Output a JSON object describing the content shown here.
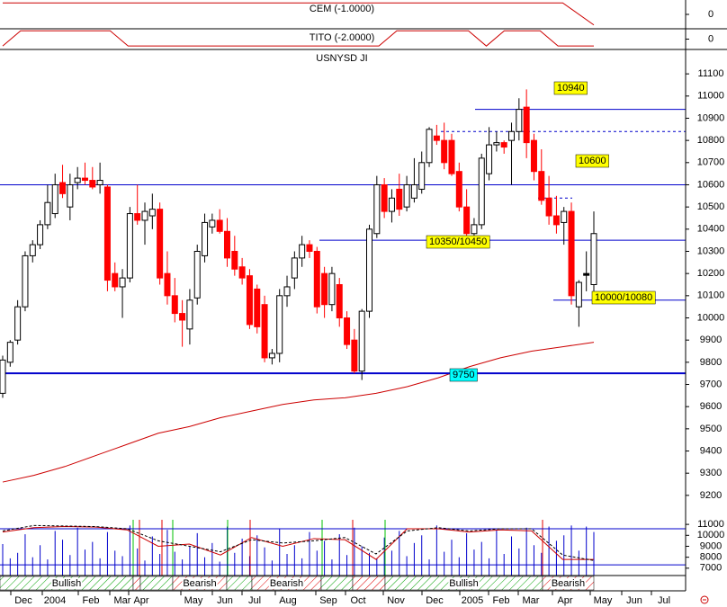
{
  "chart_data": [
    {
      "type": "line",
      "title": "CEM (-1.0000)",
      "color": "#cc0000",
      "ylim": [
        -1.5,
        1.5
      ],
      "yticks": [
        0
      ],
      "values": [
        1.2,
        1.2,
        1.2,
        1.2,
        1.2,
        1.2,
        1.2,
        1.2,
        1.2,
        1.2,
        1.2,
        1.2,
        1.2,
        1.2,
        1.2,
        1.2,
        1.2,
        1.2,
        1.2,
        -1.1
      ]
    },
    {
      "type": "line",
      "title": "TITO (-2.0000)",
      "color": "#cc0000",
      "ylim": [
        -1.5,
        1.5
      ],
      "yticks": [
        0
      ],
      "values": [
        -1,
        1.2,
        1.2,
        1.2,
        1.2,
        1.2,
        1.2,
        -1,
        -1,
        -1,
        -1,
        -1,
        -1,
        -1,
        -1,
        -1,
        -1,
        -1,
        -1,
        -1,
        -1,
        -1,
        1.2,
        1.2,
        1.2,
        1.2,
        1.2,
        -1,
        1.2,
        1.2,
        1.2,
        -1,
        -1,
        -1
      ]
    },
    {
      "type": "candlestick",
      "title": "USNYSD JI",
      "up_color": "#ffffff",
      "down_color": "#ff0000",
      "doji_color": "#000000",
      "ylim": [
        9090,
        11210
      ],
      "yticks": [
        9200,
        9300,
        9400,
        9500,
        9600,
        9700,
        9800,
        9900,
        10000,
        10100,
        10200,
        10300,
        10400,
        10500,
        10600,
        10700,
        10800,
        10900,
        11000,
        11100
      ],
      "open": [
        9660,
        9800,
        9900,
        10050,
        10280,
        10330,
        10420,
        10470,
        10610,
        10500,
        10610,
        10630,
        10620,
        10600,
        10590,
        10200,
        10140,
        10180,
        10470,
        10440,
        10460,
        10490,
        10200,
        10100,
        10020,
        9950,
        10090,
        10280,
        10410,
        10440,
        10390,
        10300,
        10230,
        10190,
        10130,
        10060,
        9820,
        9840,
        10100,
        10180,
        10270,
        10330,
        10300,
        10200,
        10060,
        10150,
        10000,
        9900,
        9760,
        10030,
        10380,
        10600,
        10480,
        10580,
        10500,
        10540,
        10580,
        10700,
        10820,
        10800,
        10800,
        10660,
        10500,
        10380,
        10420,
        10650,
        10780,
        10790,
        10800,
        10840,
        10950,
        10800,
        10660,
        10540,
        10460,
        10430,
        10480,
        10050,
        10200,
        10150
      ],
      "high": [
        9830,
        9900,
        10080,
        10300,
        10350,
        10440,
        10600,
        10650,
        10690,
        10650,
        10680,
        10700,
        10680,
        10700,
        10600,
        10250,
        10220,
        10500,
        10600,
        10520,
        10560,
        10520,
        10300,
        10180,
        10080,
        10130,
        10330,
        10470,
        10470,
        10490,
        10450,
        10370,
        10270,
        10220,
        10150,
        10100,
        9860,
        10130,
        10190,
        10300,
        10370,
        10350,
        10320,
        10230,
        10230,
        10180,
        10030,
        9950,
        10040,
        10420,
        10640,
        10630,
        10580,
        10650,
        10640,
        10720,
        10750,
        10860,
        10870,
        10880,
        10830,
        10700,
        10580,
        10450,
        10740,
        10860,
        10840,
        10800,
        10880,
        10990,
        11030,
        10830,
        10760,
        10640,
        10550,
        10500,
        10520,
        10170,
        10300,
        10480
      ],
      "low": [
        9640,
        9780,
        9880,
        10030,
        10250,
        10310,
        10400,
        10450,
        10540,
        10440,
        10580,
        10600,
        10580,
        10560,
        10120,
        10120,
        10000,
        10160,
        10420,
        10330,
        10400,
        10150,
        10060,
        9980,
        9870,
        9880,
        10060,
        10250,
        10380,
        10380,
        10230,
        10190,
        10150,
        9950,
        9930,
        9800,
        9790,
        9800,
        10050,
        10130,
        10230,
        10270,
        10020,
        10000,
        10030,
        9960,
        9860,
        9750,
        9720,
        10000,
        10360,
        10450,
        10430,
        10460,
        10480,
        10520,
        10560,
        10680,
        10780,
        10670,
        10640,
        10480,
        10350,
        10330,
        10400,
        10620,
        10750,
        10740,
        10600,
        10800,
        10720,
        10620,
        10510,
        10420,
        10380,
        10330,
        10060,
        9960,
        10120,
        10120
      ],
      "close": [
        9810,
        9890,
        10050,
        10280,
        10330,
        10420,
        10520,
        10600,
        10560,
        10600,
        10630,
        10620,
        10590,
        10620,
        10170,
        10140,
        10180,
        10470,
        10440,
        10480,
        10490,
        10180,
        10100,
        10020,
        9990,
        10080,
        10300,
        10430,
        10440,
        10390,
        10270,
        10220,
        10180,
        9970,
        9960,
        9820,
        9840,
        10100,
        10140,
        10270,
        10330,
        10300,
        10050,
        10060,
        10200,
        10000,
        9880,
        9760,
        10030,
        10400,
        10600,
        10480,
        10540,
        10490,
        10600,
        10600,
        10700,
        10850,
        10800,
        10700,
        10650,
        10500,
        10380,
        10420,
        10720,
        10780,
        10790,
        10770,
        10840,
        10940,
        10790,
        10660,
        10530,
        10460,
        10420,
        10480,
        10100,
        10160,
        10200,
        10380
      ],
      "ma": {
        "color": "#cc0000",
        "values": [
          9260,
          9290,
          9330,
          9380,
          9430,
          9480,
          9510,
          9550,
          9580,
          9610,
          9630,
          9640,
          9660,
          9690,
          9730,
          9780,
          9820,
          9850,
          9870,
          9890
        ]
      },
      "level_color": "#0000cc",
      "levels": [
        {
          "value": 10940,
          "label": "10940",
          "style": "solid",
          "box_color": "#ffff00"
        },
        {
          "value": 10840,
          "label": null,
          "style": "dashed"
        },
        {
          "value": 10600,
          "label": "10600",
          "style": "solid",
          "box_color": "#ffff00"
        },
        {
          "value": 10540,
          "label": null,
          "style": "dashed"
        },
        {
          "value": 10350,
          "label": "10350/10450",
          "style": "solid",
          "box_color": "#ffff00"
        },
        {
          "value": 10080,
          "label": "10000/10080",
          "style": "solid",
          "box_color": "#ffff00"
        },
        {
          "value": 9750,
          "label": "9750",
          "style": "thick",
          "box_color": "#00ffff"
        }
      ]
    },
    {
      "type": "oscillator",
      "ylim": [
        6330,
        11420
      ],
      "yticks": [
        7000,
        8000,
        9000,
        10000,
        11000
      ],
      "series": [
        {
          "color": "#cc0000",
          "dashed": false,
          "values": [
            10300,
            10700,
            10800,
            10750,
            10500,
            9000,
            9200,
            8200,
            9800,
            9000,
            9700,
            9600,
            7800,
            10600,
            10600,
            10300,
            10500,
            10400,
            7800,
            7800
          ]
        },
        {
          "color": "#000000",
          "dashed": true,
          "values": [
            10400,
            10900,
            10850,
            10800,
            10600,
            9500,
            9000,
            8500,
            9600,
            9300,
            9500,
            9800,
            8300,
            10400,
            10700,
            10400,
            10600,
            10600,
            8200,
            7700
          ]
        }
      ],
      "bars": {
        "color": "#0000cc",
        "values": [
          9200,
          7900,
          8400,
          10100,
          8000,
          9100,
          7800,
          10400,
          9600,
          8200,
          10700,
          8700,
          9400,
          7900,
          10300,
          8600,
          8100,
          10900,
          8800,
          7700,
          9900,
          8300,
          10500,
          8500,
          7800,
          9000,
          10200,
          8000,
          9300,
          7600,
          10800,
          8400,
          9700,
          8100,
          10000,
          8900,
          7700,
          10600,
          8300,
          9100,
          7900,
          10300,
          8600,
          9500,
          7800,
          10100,
          8200,
          10700,
          9000,
          8400,
          7900,
          9800,
          8600,
          10400,
          8100,
          9300,
          10000,
          7800,
          10900,
          8500,
          9600,
          8000,
          10200,
          8700,
          9400,
          7900,
          10500,
          8300,
          9900,
          8800,
          10700,
          9100,
          8400,
          10800,
          9500,
          10000,
          10900,
          8600,
          10800,
          10300
        ]
      },
      "levels_color": "#0000cc",
      "levels": [
        10600,
        7300
      ],
      "regimes": [
        {
          "label": "Bullish",
          "state": "bullish"
        },
        {
          "label": null,
          "state": "bearish"
        },
        {
          "label": null,
          "state": "bullish"
        },
        {
          "label": "Bearish",
          "state": "bearish"
        },
        {
          "label": null,
          "state": "bullish"
        },
        {
          "label": "Bearish",
          "state": "bearish"
        },
        {
          "label": null,
          "state": "bullish"
        },
        {
          "label": null,
          "state": "bearish"
        },
        {
          "label": "Bullish",
          "state": "bullish"
        },
        {
          "label": "Bearish",
          "state": "bearish"
        }
      ],
      "xtick_labels": [
        "Dec",
        "2004",
        "Feb",
        "Mar",
        "Apr",
        "May",
        "Jun",
        "Jul",
        "Aug",
        "Sep",
        "Oct",
        "Nov",
        "Dec",
        "2005",
        "Feb",
        "Mar",
        "Apr",
        "May",
        "Jun",
        "Jul"
      ]
    }
  ]
}
